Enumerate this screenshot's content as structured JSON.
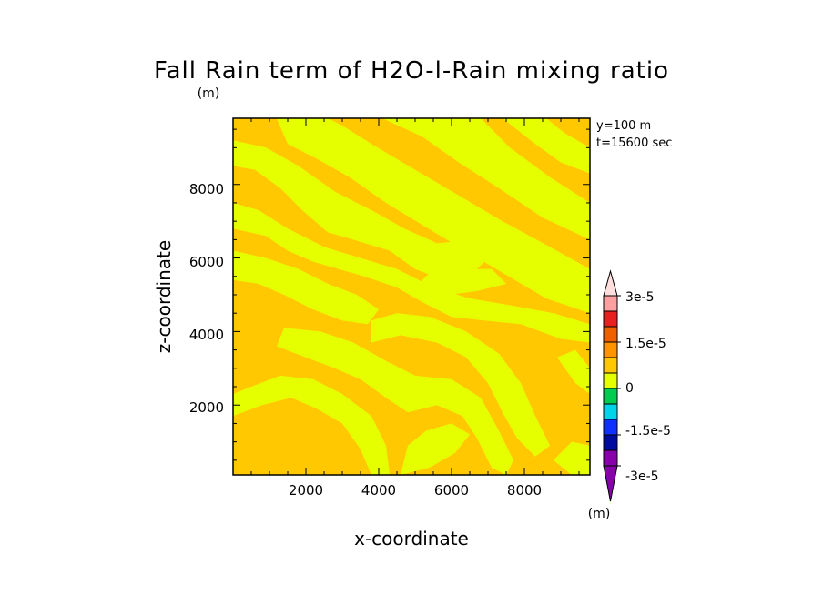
{
  "chart_data": {
    "type": "heatmap",
    "title": "Fall Rain term of H2O-l-Rain mixing ratio",
    "units": "(m)",
    "xlabel": "x-coordinate",
    "ylabel": "z-coordinate",
    "xlim": [
      0,
      9800
    ],
    "ylim": [
      100,
      9800
    ],
    "x_ticks": [
      "2000",
      "4000",
      "6000",
      "8000"
    ],
    "y_ticks": [
      "2000",
      "4000",
      "6000",
      "8000"
    ],
    "annotations": [
      "y=100 m",
      "t=15600 sec"
    ],
    "colorbar": {
      "levels": [
        -3e-05,
        -2.25e-05,
        -1.5e-05,
        -7.5e-06,
        0,
        7.5e-06,
        1.5e-05,
        2.25e-05,
        3e-05
      ],
      "labels": [
        "3e-5",
        "1.5e-5",
        "0",
        "-1.5e-5",
        "-3e-5"
      ],
      "units": "(m)",
      "colors": {
        "over": "#ffdede",
        "c3e5": "#ffa0a0",
        "c225": "#e82020",
        "c15": "#f06000",
        "c075": "#ff9400",
        "c0pos": "#ffc800",
        "c0neg": "#e6ff00",
        "cn075": "#00cc50",
        "cn15": "#00d4e8",
        "cn225": "#1030ff",
        "cn3": "#000aa0",
        "under": "#8800aa"
      }
    },
    "field": {
      "dominant_positive_color": "#ffc800",
      "dominant_negative_color": "#e6ff00",
      "value_range": [
        -7.5e-06,
        7.5e-06
      ]
    }
  }
}
